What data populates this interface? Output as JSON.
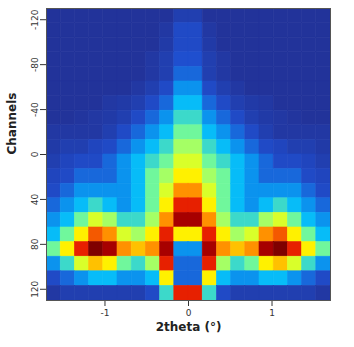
{
  "chart_data": {
    "type": "heatmap",
    "x_label": "2theta (°)",
    "y_label": "Channels",
    "xlim": [
      -1.7,
      1.7
    ],
    "ylim": [
      -130,
      130
    ],
    "xticks": [
      -1,
      0,
      1
    ],
    "yticks": [
      -120,
      -80,
      -40,
      0,
      40,
      80,
      120
    ],
    "cells": {
      "x": [
        -1.615,
        -1.445,
        -1.275,
        -1.105,
        -0.935,
        -0.765,
        -0.595,
        -0.425,
        -0.255,
        -0.085,
        0.085,
        0.255,
        0.425,
        0.595,
        0.765,
        0.935,
        1.105,
        1.275,
        1.445,
        1.615
      ],
      "y": [
        -123.5,
        -110.5,
        -97.5,
        -84.5,
        -71.5,
        -58.5,
        -45.5,
        -32.5,
        -19.5,
        -6.5,
        6.5,
        19.5,
        32.5,
        45.5,
        58.5,
        71.5,
        84.5,
        97.5,
        110.5,
        123.5
      ],
      "values": [
        [
          1,
          1,
          1,
          1,
          1,
          1,
          1,
          1,
          1,
          1.5,
          1.5,
          1,
          1,
          1,
          1,
          1,
          1,
          1,
          1,
          1
        ],
        [
          1,
          1,
          1,
          1,
          1,
          1,
          1,
          1,
          1.2,
          2,
          2,
          1.2,
          1,
          1,
          1,
          1,
          1,
          1,
          1,
          1
        ],
        [
          1,
          1,
          1,
          1,
          1,
          1,
          1,
          1,
          1.3,
          2,
          2,
          1.3,
          1,
          1,
          1,
          1,
          1,
          1,
          1,
          1
        ],
        [
          1,
          1,
          1,
          1,
          1,
          1,
          1,
          1.2,
          1.5,
          2.2,
          2.2,
          1.5,
          1.2,
          1,
          1,
          1,
          1,
          1,
          1,
          1
        ],
        [
          1,
          1,
          1,
          1,
          1,
          1,
          1,
          1.2,
          1.5,
          2.5,
          2.5,
          1.5,
          1.2,
          1,
          1,
          1,
          1,
          1,
          1,
          1
        ],
        [
          1,
          1,
          1,
          1,
          1,
          1,
          1.2,
          1.5,
          2,
          3,
          3,
          2,
          1.5,
          1.2,
          1,
          1,
          1,
          1,
          1,
          1
        ],
        [
          1,
          1,
          1,
          1,
          1.2,
          1.3,
          1.5,
          2,
          2.5,
          3.5,
          3.5,
          2.5,
          2,
          1.5,
          1.3,
          1.2,
          1,
          1,
          1,
          1
        ],
        [
          1,
          1,
          1.1,
          1.2,
          1.3,
          1.5,
          2,
          2.5,
          3,
          4,
          4,
          3,
          2.5,
          2,
          1.5,
          1.3,
          1.2,
          1.1,
          1,
          1
        ],
        [
          1.2,
          1.2,
          1.2,
          1.2,
          1.5,
          2,
          2.5,
          3,
          3.5,
          4.5,
          4.5,
          3.5,
          3,
          2.5,
          2,
          1.5,
          1.2,
          1.2,
          1.2,
          1.2
        ],
        [
          1.3,
          1.5,
          1.5,
          1.8,
          2,
          2.5,
          3,
          3.5,
          4,
          5,
          5,
          4,
          3.5,
          3,
          2.5,
          2,
          1.8,
          1.5,
          1.5,
          1.3
        ],
        [
          1.5,
          1.8,
          2,
          2,
          2.5,
          3,
          3.5,
          4,
          4.5,
          5.5,
          5.5,
          4.5,
          4,
          3.5,
          3,
          2.5,
          2,
          2,
          1.8,
          1.5
        ],
        [
          1.8,
          2,
          2.5,
          2.5,
          2.5,
          3,
          3.5,
          4.5,
          5,
          6,
          6,
          5,
          4.5,
          3.5,
          3,
          2.5,
          2.5,
          2.5,
          2,
          1.8
        ],
        [
          2,
          2.5,
          3,
          3,
          3,
          3,
          3.5,
          4.5,
          5.5,
          7,
          7,
          5.5,
          4.5,
          3.5,
          3,
          3,
          3,
          3,
          2.5,
          2
        ],
        [
          2.5,
          3,
          3.5,
          4,
          3.5,
          3,
          3.5,
          4.5,
          6,
          8,
          8,
          6,
          4.5,
          3.5,
          3,
          3.5,
          4,
          3.5,
          3,
          2.5
        ],
        [
          3,
          3.5,
          4.5,
          5.5,
          5,
          4,
          4,
          5,
          7,
          9,
          9,
          7,
          5,
          4,
          4,
          5,
          5.5,
          4.5,
          3.5,
          3
        ],
        [
          3.5,
          4.5,
          6,
          7.5,
          7,
          5.5,
          5,
          6,
          8,
          6,
          6,
          8,
          6,
          5,
          5.5,
          7,
          7.5,
          6,
          4.5,
          3.5
        ],
        [
          4.5,
          6,
          8,
          9.5,
          9,
          7,
          6.5,
          7,
          9,
          3,
          3,
          9,
          7,
          6.5,
          7,
          9,
          9.5,
          8,
          6,
          4.5
        ],
        [
          3,
          4,
          5.5,
          6.5,
          6,
          4.5,
          4,
          5,
          8,
          2.5,
          2.5,
          8,
          5,
          4,
          4.5,
          6,
          6.5,
          5.5,
          4,
          3
        ],
        [
          2,
          2.5,
          3,
          3.5,
          3.5,
          3,
          3,
          3.5,
          6,
          2.5,
          2.5,
          6,
          3.5,
          3,
          3,
          3.5,
          3.5,
          3,
          2.5,
          2
        ],
        [
          1.2,
          1.5,
          1.5,
          1.5,
          1.5,
          1.5,
          1.5,
          2,
          4,
          8,
          8,
          4,
          2,
          1.5,
          1.5,
          1.5,
          1.5,
          1.5,
          1.5,
          1.2
        ]
      ]
    }
  }
}
